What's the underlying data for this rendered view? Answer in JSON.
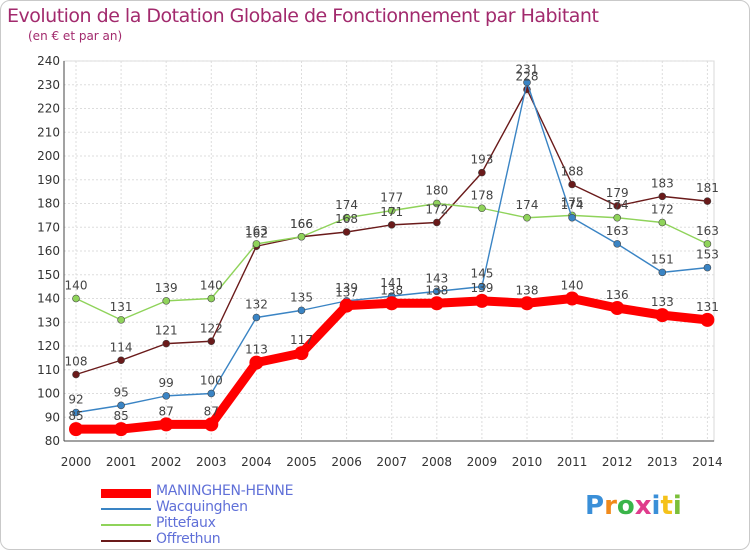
{
  "title": "Evolution de la Dotation Globale de Fonctionnement par Habitant",
  "subtitle": "(en € et par an)",
  "logo": {
    "text": "Proxiti",
    "colors": [
      "#3a8fd8",
      "#f08a1c",
      "#3ab54a",
      "#e03c8c",
      "#3a8fd8",
      "#f5c21a",
      "#7bbf3a"
    ]
  },
  "chart_data": {
    "type": "line",
    "title": "Evolution de la Dotation Globale de Fonctionnement par Habitant",
    "subtitle": "(en € et par an)",
    "xlabel": "",
    "ylabel": "",
    "x": [
      "2000",
      "2001",
      "2002",
      "2003",
      "2004",
      "2005",
      "2006",
      "2007",
      "2008",
      "2009",
      "2010",
      "2011",
      "2012",
      "2013",
      "2014"
    ],
    "ylim": [
      80,
      240
    ],
    "yticks": [
      80,
      90,
      100,
      110,
      120,
      130,
      140,
      150,
      160,
      170,
      180,
      190,
      200,
      210,
      220,
      230,
      240
    ],
    "grid": true,
    "legend_position": "bottom-left",
    "series": [
      {
        "name": "MANINGHEN-HENNE",
        "color": "#ff0000",
        "values": [
          85,
          85,
          87,
          87,
          113,
          117,
          137,
          138,
          138,
          139,
          138,
          140,
          136,
          133,
          131
        ]
      },
      {
        "name": "Wacquinghen",
        "color": "#3a84c4",
        "values": [
          92,
          95,
          99,
          100,
          132,
          135,
          139,
          141,
          143,
          145,
          231,
          174,
          163,
          151,
          153
        ]
      },
      {
        "name": "Pittefaux",
        "color": "#8fd35a",
        "values": [
          140,
          131,
          139,
          140,
          163,
          166,
          174,
          177,
          180,
          178,
          174,
          175,
          174,
          172,
          163
        ]
      },
      {
        "name": "Offrethun",
        "color": "#6a1a1a",
        "values": [
          108,
          114,
          121,
          122,
          162,
          166,
          168,
          171,
          172,
          193,
          228,
          188,
          179,
          183,
          181
        ]
      }
    ]
  }
}
